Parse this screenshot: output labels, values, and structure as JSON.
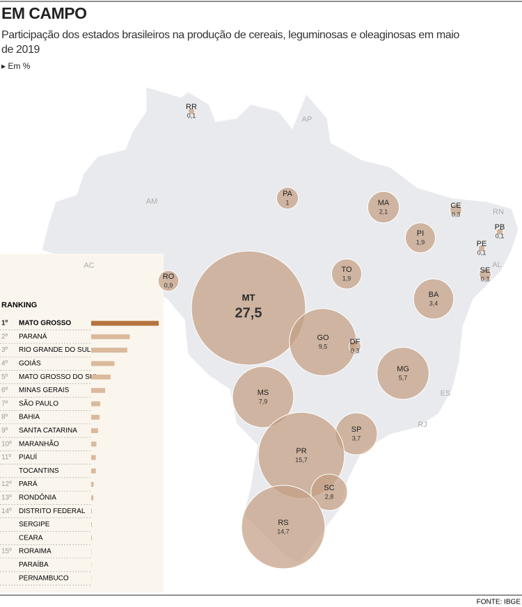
{
  "header": {
    "title": "EM CAMPO",
    "subtitle": "Participação dos estados brasileiros na produção de cereais, leguminosas e oleaginosas em maio de 2019",
    "unit": "Em %"
  },
  "chart_data": [
    {
      "type": "bubble-map",
      "color": "#c4a084",
      "categories": [
        "RR",
        "AP",
        "AM",
        "AC",
        "PA",
        "MA",
        "CE",
        "RN",
        "PB",
        "PI",
        "PE",
        "AL",
        "SE",
        "TO",
        "BA",
        "RO",
        "MT",
        "GO",
        "DF",
        "MG",
        "ES",
        "MS",
        "SP",
        "RJ",
        "PR",
        "SC",
        "RS"
      ],
      "values": [
        0.1,
        null,
        null,
        null,
        1,
        2.1,
        0.3,
        null,
        0.1,
        1.9,
        0.1,
        null,
        0.3,
        1.9,
        3.4,
        0.9,
        27.5,
        9.5,
        0.3,
        5.7,
        null,
        7.9,
        3.7,
        null,
        15.7,
        2.8,
        14.7
      ],
      "value_labels": [
        "0,1",
        null,
        null,
        null,
        "1",
        "2,1",
        "0,3",
        null,
        "0,1",
        "1,9",
        "0,1",
        null,
        "0,3",
        "1,9",
        "3,4",
        "0,9",
        "27,5",
        "9,5",
        "0,3",
        "5,7",
        null,
        "7,9",
        "3,7",
        null,
        "15,7",
        "2,8",
        "14,7"
      ]
    },
    {
      "type": "bar",
      "title": "RANKING",
      "color": "#dbb99c",
      "highlight_color": "#b5733f",
      "rank_labels": [
        "1º",
        "2º",
        "3º",
        "4º",
        "5º",
        "6º",
        "7º",
        "8º",
        "9º",
        "10º",
        "11º",
        null,
        "12º",
        "13º",
        "14º",
        null,
        null,
        "15º",
        null,
        null
      ],
      "categories": [
        "MATO GROSSO",
        "PARANÁ",
        "RIO GRANDE DO SUL",
        "GOIÁS",
        "MATO GROSSO DO SUL",
        "MINAS GERAIS",
        "SÃO PAULO",
        "BAHIA",
        "SANTA CATARINA",
        "MARANHÃO",
        "PIAUÍ",
        "TOCANTINS",
        "PARÁ",
        "RONDÔNIA",
        "DISTRITO FEDERAL",
        "SERGIPE",
        "CEARA",
        "RORAIMA",
        "PARAÍBA",
        "PERNAMBUCO"
      ],
      "values": [
        27.5,
        15.7,
        14.7,
        9.5,
        7.9,
        5.7,
        3.7,
        3.4,
        2.8,
        2.1,
        1.9,
        1.9,
        1,
        0.9,
        0.3,
        0.3,
        0.3,
        0.1,
        0.1,
        0.1
      ]
    }
  ],
  "source": "FONTE: IBGE"
}
